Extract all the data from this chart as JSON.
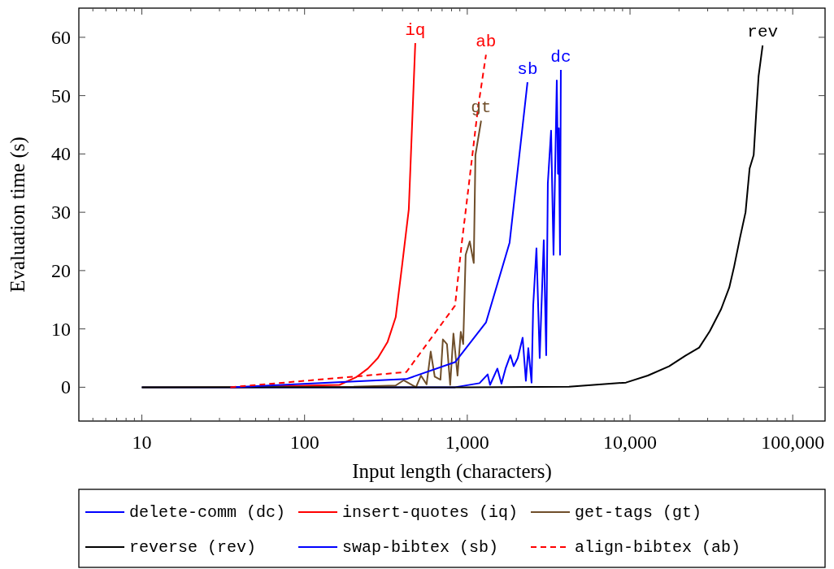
{
  "chart_data": {
    "type": "line",
    "xlabel": "Input length (characters)",
    "ylabel": "Evaluation time (s)",
    "log": "x",
    "grid": false,
    "legend": "bottom",
    "xlim": [
      4.1,
      158000
    ],
    "ylim": [
      -5.8,
      65
    ],
    "xticks": [
      {
        "value": 5,
        "label": null
      },
      {
        "value": 6,
        "label": null
      },
      {
        "value": 7,
        "label": null
      },
      {
        "value": 8,
        "label": null
      },
      {
        "value": 9,
        "label": null
      },
      10,
      {
        "value": 20,
        "label": null
      },
      {
        "value": 30,
        "label": null
      },
      {
        "value": 40,
        "label": null
      },
      {
        "value": 50,
        "label": null
      },
      {
        "value": 60,
        "label": null
      },
      {
        "value": 70,
        "label": null
      },
      {
        "value": 80,
        "label": null
      },
      {
        "value": 90,
        "label": null
      },
      100,
      {
        "value": 200,
        "label": null
      },
      {
        "value": 300,
        "label": null
      },
      {
        "value": 400,
        "label": null
      },
      {
        "value": 500,
        "label": null
      },
      {
        "value": 600,
        "label": null
      },
      {
        "value": 700,
        "label": null
      },
      {
        "value": 800,
        "label": null
      },
      {
        "value": 900,
        "label": null
      },
      {
        "value": 1000,
        "label": "1,000"
      },
      {
        "value": 2000,
        "label": null
      },
      {
        "value": 3000,
        "label": null
      },
      {
        "value": 4000,
        "label": null
      },
      {
        "value": 5000,
        "label": null
      },
      {
        "value": 6000,
        "label": null
      },
      {
        "value": 7000,
        "label": null
      },
      {
        "value": 8000,
        "label": null
      },
      {
        "value": 9000,
        "label": null
      },
      {
        "value": 10000,
        "label": "10,000"
      },
      {
        "value": 20000,
        "label": null
      },
      {
        "value": 30000,
        "label": null
      },
      {
        "value": 40000,
        "label": null
      },
      {
        "value": 50000,
        "label": null
      },
      {
        "value": 60000,
        "label": null
      },
      {
        "value": 70000,
        "label": null
      },
      {
        "value": 80000,
        "label": null
      },
      {
        "value": 90000,
        "label": null
      },
      {
        "value": 100000,
        "label": "100,000"
      }
    ],
    "yticks": [
      0,
      10,
      20,
      30,
      40,
      50,
      60
    ],
    "series": [
      {
        "name": "delete-comm (dc)",
        "color": "#0000ff",
        "line_style": "solid",
        "x": [
          10,
          841,
          1189,
          1334,
          1380,
          1531,
          1622,
          1718,
          1841,
          1928,
          2042,
          2188,
          2291,
          2371,
          2483,
          2541,
          2661,
          2786,
          2951,
          3055,
          3126,
          3273,
          3388,
          3548,
          3610,
          3650,
          3715,
          3758
        ],
        "values": [
          0,
          0,
          0.7,
          2.2,
          0.4,
          3.2,
          0.6,
          3.2,
          5.5,
          3.6,
          5,
          8.5,
          1.1,
          6.7,
          0.8,
          14,
          23.8,
          5,
          25.2,
          5.5,
          35,
          44,
          22.7,
          52.6,
          36.6,
          44.4,
          22.7,
          54.4
        ]
      },
      {
        "name": "insert-quotes (iq)",
        "color": "#ff0000",
        "line_style": "solid",
        "x": [
          35,
          164,
          207,
          245,
          282,
          324,
          363,
          398,
          437,
          479
        ],
        "values": [
          0,
          0.4,
          1.7,
          3.2,
          5,
          7.8,
          12,
          21,
          30.5,
          59
        ]
      },
      {
        "name": "get-tags (gt)",
        "color": "#6f4e2a",
        "line_style": "solid",
        "x": [
          10,
          200,
          363,
          407,
          484,
          519,
          562,
          596,
          631,
          684,
          708,
          750,
          785,
          822,
          871,
          912,
          944,
          977,
          1035,
          1096,
          1122,
          1216
        ],
        "values": [
          0,
          0.1,
          0.3,
          1.2,
          0,
          2,
          0.5,
          6.1,
          1.8,
          1.3,
          8.2,
          7.4,
          0.4,
          9.2,
          2,
          9.5,
          7.4,
          22.7,
          25,
          21.3,
          39.8,
          45.7
        ]
      },
      {
        "name": "reverse (rev)",
        "color": "#000000",
        "line_style": "solid",
        "x": [
          10,
          1000,
          4217,
          9441,
          12882,
          17378,
          21878,
          26607,
          30903,
          36308,
          40738,
          43652,
          47315,
          51286,
          54325,
          57544,
          59566,
          61660,
          65313
        ],
        "values": [
          0,
          0,
          0.1,
          0.8,
          2,
          3.6,
          5.4,
          6.8,
          9.6,
          13.4,
          17.1,
          20.7,
          25.5,
          30,
          37.5,
          39.8,
          46.8,
          53.3,
          58.6
        ]
      },
      {
        "name": "swap-bibtex (sb)",
        "color": "#0000ff",
        "line_style": "solid",
        "x": [
          35,
          422,
          841,
          1303,
          1820,
          2344
        ],
        "values": [
          0,
          1.4,
          4.3,
          11.1,
          24.8,
          52.3
        ]
      },
      {
        "name": "align-bibtex (ab)",
        "color": "#ff0000",
        "line_style": "dashed",
        "x": [
          35,
          422,
          841,
          923,
          1035,
          1161,
          1303
        ],
        "values": [
          0,
          2.6,
          14,
          24.5,
          36,
          47.7,
          57
        ]
      }
    ],
    "annotations": [
      "dc",
      "iq",
      "gt",
      "rev",
      "sb",
      "ab"
    ]
  }
}
